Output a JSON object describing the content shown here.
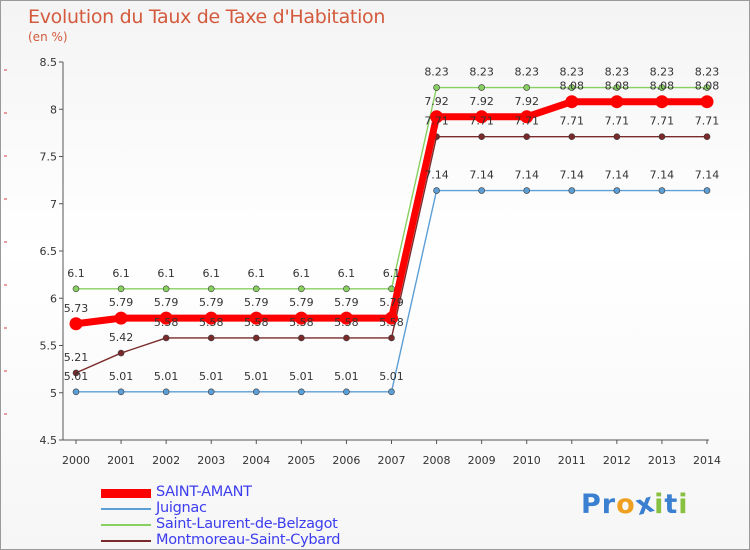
{
  "chart_data": {
    "type": "line",
    "title": "Evolution du Taux de Taxe d'Habitation",
    "ylabel": "(en %)",
    "xlabel": "",
    "x": [
      "2000",
      "2001",
      "2002",
      "2003",
      "2004",
      "2005",
      "2006",
      "2007",
      "2008",
      "2009",
      "2010",
      "2011",
      "2012",
      "2013",
      "2014"
    ],
    "ylim": [
      4.5,
      8.5
    ],
    "yticks": [
      "4.5",
      "5",
      "5.5",
      "6",
      "6.5",
      "7",
      "7.5",
      "8",
      "8.5"
    ],
    "series": [
      {
        "name": "SAINT-AMANT",
        "color": "#ff0000",
        "values": [
          5.73,
          5.79,
          5.79,
          5.79,
          5.79,
          5.79,
          5.79,
          5.79,
          7.92,
          7.92,
          7.92,
          8.08,
          8.08,
          8.08,
          8.08
        ],
        "labels": [
          "5.73",
          "5.79",
          "5.79",
          "5.79",
          "5.79",
          "5.79",
          "5.79",
          "5.79",
          "7.92",
          "7.92",
          "7.92",
          "8.08",
          "8.08",
          "8.08",
          "8.08"
        ]
      },
      {
        "name": "Juignac",
        "color": "#5c9ed6",
        "values": [
          5.01,
          5.01,
          5.01,
          5.01,
          5.01,
          5.01,
          5.01,
          5.01,
          7.14,
          7.14,
          7.14,
          7.14,
          7.14,
          7.14,
          7.14
        ],
        "labels": [
          "5.01",
          "5.01",
          "5.01",
          "5.01",
          "5.01",
          "5.01",
          "5.01",
          "5.01",
          "7.14",
          "7.14",
          "7.14",
          "7.14",
          "7.14",
          "7.14",
          "7.14"
        ]
      },
      {
        "name": "Saint-Laurent-de-Belzagot",
        "color": "#88d060",
        "values": [
          6.1,
          6.1,
          6.1,
          6.1,
          6.1,
          6.1,
          6.1,
          6.1,
          8.23,
          8.23,
          8.23,
          8.23,
          8.23,
          8.23,
          8.23
        ],
        "labels": [
          "6.1",
          "6.1",
          "6.1",
          "6.1",
          "6.1",
          "6.1",
          "6.1",
          "6.1",
          "8.23",
          "8.23",
          "8.23",
          "8.23",
          "8.23",
          "8.23",
          "8.23"
        ]
      },
      {
        "name": "Montmoreau-Saint-Cybard",
        "color": "#7a2a2a",
        "values": [
          5.21,
          5.42,
          5.58,
          5.58,
          5.58,
          5.58,
          5.58,
          5.58,
          7.71,
          7.71,
          7.71,
          7.71,
          7.71,
          7.71,
          7.71
        ],
        "labels": [
          "5.21",
          "5.42",
          "5.58",
          "5.58",
          "5.58",
          "5.58",
          "5.58",
          "5.58",
          "7.71",
          "7.71",
          "7.71",
          "7.71",
          "7.71",
          "7.71",
          "7.71"
        ]
      }
    ],
    "grid": false,
    "legend": "bottom-left"
  },
  "logo": {
    "text": "Proxiti",
    "letters": [
      "P",
      "r",
      "o",
      "x",
      "i",
      "t",
      "i"
    ],
    "colors": [
      "#3a7fd0",
      "#3a7fd0",
      "#f0a020",
      "#3a7fd0",
      "#88c040",
      "#3a7fd0",
      "#88c040"
    ]
  }
}
